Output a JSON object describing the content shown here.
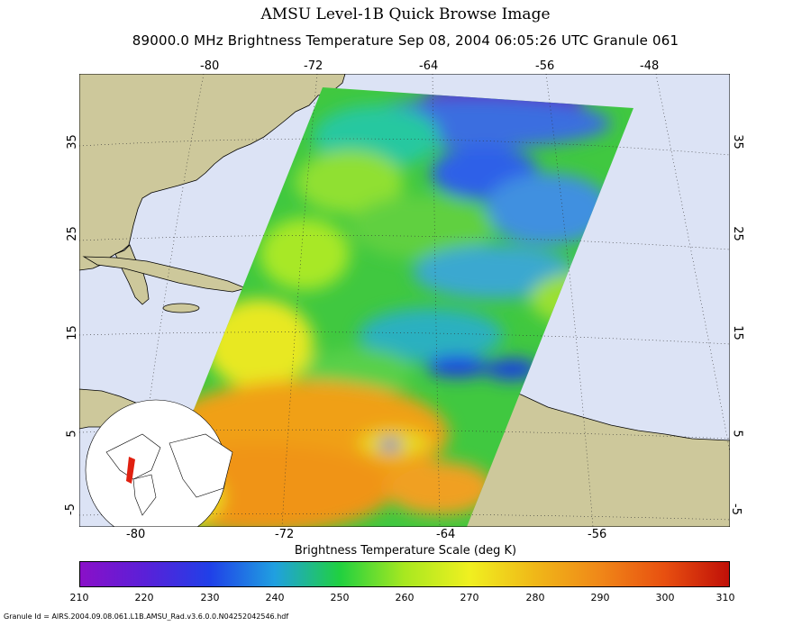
{
  "header": {
    "title": "AMSU Level-1B Quick Browse Image",
    "subtitle": "89000.0 MHz Brightness Temperature   Sep 08, 2004 06:05:26 UTC  Granule 061"
  },
  "axes": {
    "top_ticks": [
      "-80",
      "-72",
      "-64",
      "-56",
      "-48"
    ],
    "bottom_ticks": [
      "-80",
      "-72",
      "-64",
      "-56"
    ],
    "left_ticks": [
      "35",
      "25",
      "15",
      "5",
      "-5"
    ],
    "right_ticks": [
      "35",
      "25",
      "15",
      "5",
      "-5"
    ]
  },
  "colorbar": {
    "title": "Brightness Temperature Scale (deg K)",
    "labels": [
      "210",
      "220",
      "230",
      "240",
      "250",
      "260",
      "270",
      "280",
      "290",
      "300",
      "310"
    ],
    "range": [
      210,
      310
    ]
  },
  "footer": {
    "granule_id": "Granule Id = AIRS.2004.09.08.061.L1B.AMSU_Rad.v3.6.0.0.N04252042546.hdf"
  },
  "colors": {
    "ocean": "#dce3f5",
    "land": "#cdc89b",
    "border": "#000000"
  }
}
